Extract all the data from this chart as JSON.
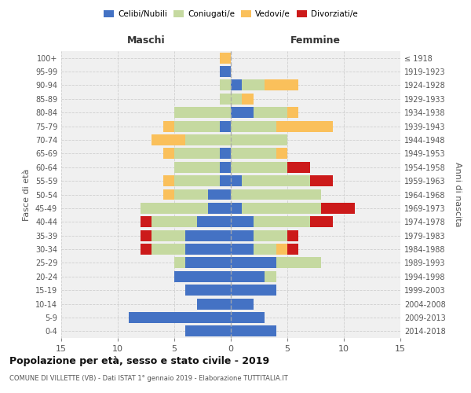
{
  "age_groups": [
    "0-4",
    "5-9",
    "10-14",
    "15-19",
    "20-24",
    "25-29",
    "30-34",
    "35-39",
    "40-44",
    "45-49",
    "50-54",
    "55-59",
    "60-64",
    "65-69",
    "70-74",
    "75-79",
    "80-84",
    "85-89",
    "90-94",
    "95-99",
    "100+"
  ],
  "birth_years": [
    "2014-2018",
    "2009-2013",
    "2004-2008",
    "1999-2003",
    "1994-1998",
    "1989-1993",
    "1984-1988",
    "1979-1983",
    "1974-1978",
    "1969-1973",
    "1964-1968",
    "1959-1963",
    "1954-1958",
    "1949-1953",
    "1944-1948",
    "1939-1943",
    "1934-1938",
    "1929-1933",
    "1924-1928",
    "1919-1923",
    "≤ 1918"
  ],
  "maschi": {
    "celibi": [
      4,
      9,
      3,
      4,
      5,
      4,
      4,
      4,
      3,
      2,
      2,
      1,
      1,
      1,
      0,
      1,
      0,
      0,
      0,
      1,
      0
    ],
    "coniugati": [
      0,
      0,
      0,
      0,
      0,
      1,
      3,
      3,
      4,
      6,
      3,
      4,
      4,
      4,
      4,
      4,
      5,
      1,
      1,
      0,
      0
    ],
    "vedovi": [
      0,
      0,
      0,
      0,
      0,
      0,
      0,
      0,
      0,
      0,
      1,
      1,
      0,
      1,
      3,
      1,
      0,
      0,
      0,
      0,
      1
    ],
    "divorziati": [
      0,
      0,
      0,
      0,
      0,
      0,
      1,
      1,
      1,
      0,
      0,
      0,
      0,
      0,
      0,
      0,
      0,
      0,
      0,
      0,
      0
    ]
  },
  "femmine": {
    "nubili": [
      4,
      3,
      2,
      4,
      3,
      4,
      2,
      2,
      2,
      1,
      0,
      1,
      0,
      0,
      0,
      0,
      2,
      0,
      1,
      0,
      0
    ],
    "coniugate": [
      0,
      0,
      0,
      0,
      1,
      4,
      2,
      3,
      5,
      7,
      8,
      6,
      5,
      4,
      5,
      4,
      3,
      1,
      2,
      0,
      0
    ],
    "vedove": [
      0,
      0,
      0,
      0,
      0,
      0,
      1,
      0,
      0,
      0,
      0,
      0,
      0,
      1,
      0,
      5,
      1,
      1,
      3,
      0,
      0
    ],
    "divorziate": [
      0,
      0,
      0,
      0,
      0,
      0,
      1,
      1,
      2,
      3,
      0,
      2,
      2,
      0,
      0,
      0,
      0,
      0,
      0,
      0,
      0
    ]
  },
  "colors": {
    "celibi": "#4472c4",
    "coniugati": "#c5d9a0",
    "vedovi": "#fac05b",
    "divorziati": "#cc1a1a"
  },
  "title": "Popolazione per età, sesso e stato civile - 2019",
  "subtitle": "COMUNE DI VILLETTE (VB) - Dati ISTAT 1° gennaio 2019 - Elaborazione TUTTITALIA.IT",
  "xlabel_left": "Maschi",
  "xlabel_right": "Femmine",
  "ylabel_left": "Fasce di età",
  "ylabel_right": "Anni di nascita",
  "xlim": 15,
  "bg_color": "#f0f0f0",
  "grid_color": "#cccccc"
}
